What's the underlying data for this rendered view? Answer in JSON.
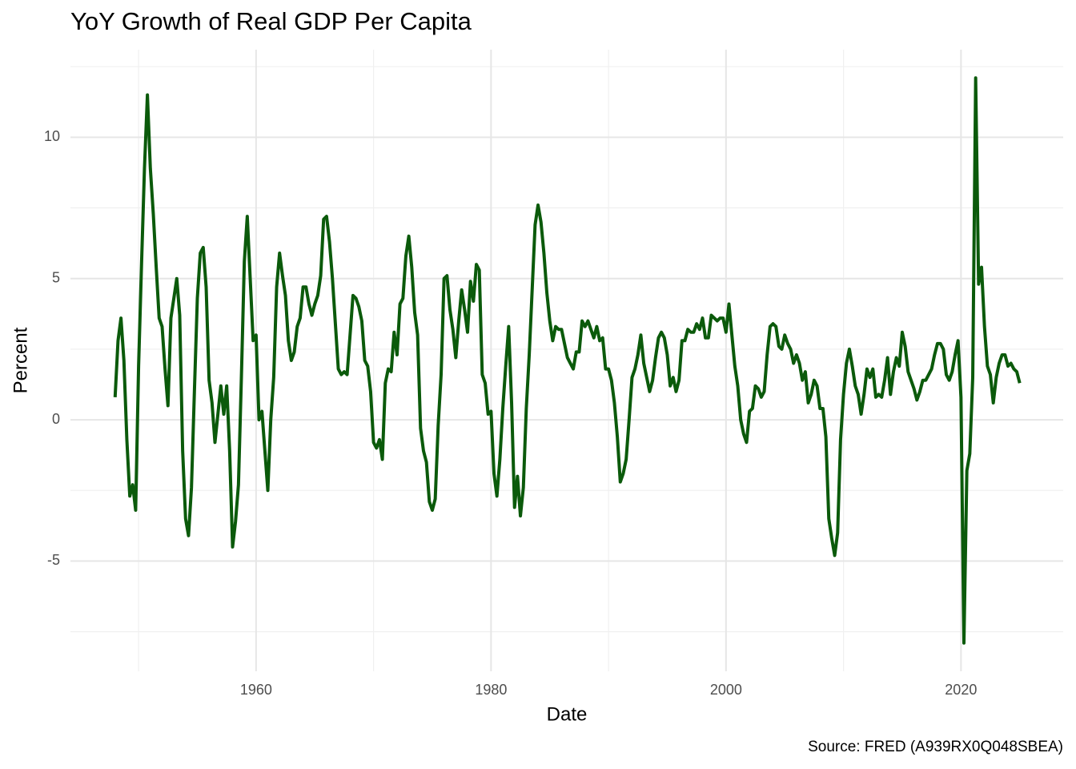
{
  "chart_data": {
    "type": "line",
    "title": "YoY Growth of Real GDP Per Capita",
    "x_label": "Date",
    "y_label": "Percent",
    "caption": "Source: FRED (A939RX0Q048SBEA)",
    "xlim": [
      1944.2,
      2028.7
    ],
    "ylim": [
      -8.9,
      13.1
    ],
    "xticks": [
      1960,
      1980,
      2000,
      2020
    ],
    "yticks": [
      -5,
      0,
      5,
      10
    ],
    "grid": true,
    "x": [
      1948,
      1948.25,
      1948.5,
      1948.75,
      1949,
      1949.25,
      1949.5,
      1949.75,
      1950,
      1950.25,
      1950.5,
      1950.75,
      1951,
      1951.25,
      1951.5,
      1951.75,
      1952,
      1952.25,
      1952.5,
      1952.75,
      1953,
      1953.25,
      1953.5,
      1953.75,
      1954,
      1954.25,
      1954.5,
      1954.75,
      1955,
      1955.25,
      1955.5,
      1955.75,
      1956,
      1956.25,
      1956.5,
      1956.75,
      1957,
      1957.25,
      1957.5,
      1957.75,
      1958,
      1958.25,
      1958.5,
      1958.75,
      1959,
      1959.25,
      1959.5,
      1959.75,
      1960,
      1960.25,
      1960.5,
      1960.75,
      1961,
      1961.25,
      1961.5,
      1961.75,
      1962,
      1962.25,
      1962.5,
      1962.75,
      1963,
      1963.25,
      1963.5,
      1963.75,
      1964,
      1964.25,
      1964.5,
      1964.75,
      1965,
      1965.25,
      1965.5,
      1965.75,
      1966,
      1966.25,
      1966.5,
      1966.75,
      1967,
      1967.25,
      1967.5,
      1967.75,
      1968,
      1968.25,
      1968.5,
      1968.75,
      1969,
      1969.25,
      1969.5,
      1969.75,
      1970,
      1970.25,
      1970.5,
      1970.75,
      1971,
      1971.25,
      1971.5,
      1971.75,
      1972,
      1972.25,
      1972.5,
      1972.75,
      1973,
      1973.25,
      1973.5,
      1973.75,
      1974,
      1974.25,
      1974.5,
      1974.75,
      1975,
      1975.25,
      1975.5,
      1975.75,
      1976,
      1976.25,
      1976.5,
      1976.75,
      1977,
      1977.25,
      1977.5,
      1977.75,
      1978,
      1978.25,
      1978.5,
      1978.75,
      1979,
      1979.25,
      1979.5,
      1979.75,
      1980,
      1980.25,
      1980.5,
      1980.75,
      1981,
      1981.25,
      1981.5,
      1981.75,
      1982,
      1982.25,
      1982.5,
      1982.75,
      1983,
      1983.25,
      1983.5,
      1983.75,
      1984,
      1984.25,
      1984.5,
      1984.75,
      1985,
      1985.25,
      1985.5,
      1985.75,
      1986,
      1986.25,
      1986.5,
      1986.75,
      1987,
      1987.25,
      1987.5,
      1987.75,
      1988,
      1988.25,
      1988.5,
      1988.75,
      1989,
      1989.25,
      1989.5,
      1989.75,
      1990,
      1990.25,
      1990.5,
      1990.75,
      1991,
      1991.25,
      1991.5,
      1991.75,
      1992,
      1992.25,
      1992.5,
      1992.75,
      1993,
      1993.25,
      1993.5,
      1993.75,
      1994,
      1994.25,
      1994.5,
      1994.75,
      1995,
      1995.25,
      1995.5,
      1995.75,
      1996,
      1996.25,
      1996.5,
      1996.75,
      1997,
      1997.25,
      1997.5,
      1997.75,
      1998,
      1998.25,
      1998.5,
      1998.75,
      1999,
      1999.25,
      1999.5,
      1999.75,
      2000,
      2000.25,
      2000.5,
      2000.75,
      2001,
      2001.25,
      2001.5,
      2001.75,
      2002,
      2002.25,
      2002.5,
      2002.75,
      2003,
      2003.25,
      2003.5,
      2003.75,
      2004,
      2004.25,
      2004.5,
      2004.75,
      2005,
      2005.25,
      2005.5,
      2005.75,
      2006,
      2006.25,
      2006.5,
      2006.75,
      2007,
      2007.25,
      2007.5,
      2007.75,
      2008,
      2008.25,
      2008.5,
      2008.75,
      2009,
      2009.25,
      2009.5,
      2009.75,
      2010,
      2010.25,
      2010.5,
      2010.75,
      2011,
      2011.25,
      2011.5,
      2011.75,
      2012,
      2012.25,
      2012.5,
      2012.75,
      2013,
      2013.25,
      2013.5,
      2013.75,
      2014,
      2014.25,
      2014.5,
      2014.75,
      2015,
      2015.25,
      2015.5,
      2015.75,
      2016,
      2016.25,
      2016.5,
      2016.75,
      2017,
      2017.25,
      2017.5,
      2017.75,
      2018,
      2018.25,
      2018.5,
      2018.75,
      2019,
      2019.25,
      2019.5,
      2019.75,
      2020,
      2020.25,
      2020.5,
      2020.75,
      2021,
      2021.25,
      2021.5,
      2021.75,
      2022,
      2022.25,
      2022.5,
      2022.75,
      2023,
      2023.25,
      2023.5,
      2023.75,
      2024,
      2024.25,
      2024.5,
      2024.75,
      2025
    ],
    "series": [
      {
        "color": "#0b5a0b",
        "values": [
          0.8,
          2.8,
          3.6,
          2.1,
          -0.7,
          -2.7,
          -2.3,
          -3.2,
          1.9,
          5.5,
          8.9,
          11.5,
          8.9,
          7.3,
          5.4,
          3.6,
          3.3,
          1.8,
          0.5,
          3.6,
          4.3,
          5.0,
          3.7,
          -1.1,
          -3.5,
          -4.1,
          -2.4,
          1.0,
          4.3,
          5.9,
          6.1,
          4.7,
          1.4,
          0.6,
          -0.8,
          0.2,
          1.2,
          0.2,
          1.2,
          -1.1,
          -4.5,
          -3.6,
          -2.3,
          1.5,
          5.6,
          7.2,
          5.0,
          2.8,
          3.0,
          0.0,
          0.3,
          -1.1,
          -2.5,
          0.0,
          1.5,
          4.7,
          5.9,
          5.1,
          4.4,
          2.8,
          2.1,
          2.4,
          3.3,
          3.6,
          4.7,
          4.7,
          4.1,
          3.7,
          4.1,
          4.4,
          5.1,
          7.1,
          7.2,
          6.3,
          5.0,
          3.4,
          1.8,
          1.6,
          1.7,
          1.6,
          3.0,
          4.4,
          4.3,
          4.0,
          3.5,
          2.1,
          1.9,
          1.0,
          -0.8,
          -1.0,
          -0.7,
          -1.4,
          1.3,
          1.8,
          1.7,
          3.1,
          2.3,
          4.1,
          4.3,
          5.8,
          6.5,
          5.4,
          3.8,
          3.0,
          -0.3,
          -1.1,
          -1.5,
          -2.9,
          -3.2,
          -2.8,
          -0.2,
          1.6,
          5.0,
          5.1,
          3.9,
          3.2,
          2.2,
          3.5,
          4.6,
          3.9,
          3.1,
          4.9,
          4.2,
          5.5,
          5.3,
          1.6,
          1.3,
          0.2,
          0.3,
          -1.9,
          -2.7,
          -1.4,
          0.4,
          1.9,
          3.3,
          0.6,
          -3.1,
          -2.0,
          -3.4,
          -2.4,
          0.4,
          2.3,
          4.6,
          6.9,
          7.6,
          7.0,
          5.9,
          4.5,
          3.5,
          2.8,
          3.3,
          3.2,
          3.2,
          2.7,
          2.2,
          2.0,
          1.8,
          2.4,
          2.4,
          3.5,
          3.3,
          3.5,
          3.2,
          2.9,
          3.3,
          2.8,
          2.9,
          1.8,
          1.8,
          1.4,
          0.6,
          -0.6,
          -2.2,
          -1.9,
          -1.4,
          0.0,
          1.5,
          1.8,
          2.3,
          3.0,
          2.0,
          1.5,
          1.0,
          1.4,
          2.2,
          2.9,
          3.1,
          2.9,
          2.3,
          1.2,
          1.5,
          1.0,
          1.4,
          2.8,
          2.8,
          3.2,
          3.1,
          3.1,
          3.4,
          3.2,
          3.6,
          2.9,
          2.9,
          3.7,
          3.6,
          3.5,
          3.6,
          3.6,
          3.1,
          4.1,
          3.0,
          1.9,
          1.2,
          0.0,
          -0.5,
          -0.8,
          0.3,
          0.4,
          1.2,
          1.1,
          0.8,
          1.0,
          2.3,
          3.3,
          3.4,
          3.3,
          2.6,
          2.5,
          3.0,
          2.7,
          2.5,
          2.0,
          2.3,
          2.0,
          1.4,
          1.7,
          0.6,
          0.9,
          1.4,
          1.2,
          0.4,
          0.4,
          -0.6,
          -3.5,
          -4.2,
          -4.8,
          -4.0,
          -0.7,
          0.9,
          2.0,
          2.5,
          1.9,
          1.2,
          0.9,
          0.2,
          0.9,
          1.8,
          1.5,
          1.8,
          0.8,
          0.9,
          0.8,
          1.4,
          2.2,
          0.9,
          1.7,
          2.2,
          1.9,
          3.1,
          2.6,
          1.7,
          1.4,
          1.1,
          0.7,
          1.0,
          1.4,
          1.4,
          1.6,
          1.8,
          2.3,
          2.7,
          2.7,
          2.5,
          1.6,
          1.4,
          1.7,
          2.3,
          2.8,
          0.8,
          -7.9,
          -1.8,
          -1.2,
          1.5,
          12.1,
          4.8,
          5.4,
          3.3,
          1.9,
          1.6,
          0.6,
          1.5,
          2.0,
          2.3,
          2.3,
          1.9,
          2.0,
          1.8,
          1.7,
          1.3
        ]
      }
    ]
  }
}
